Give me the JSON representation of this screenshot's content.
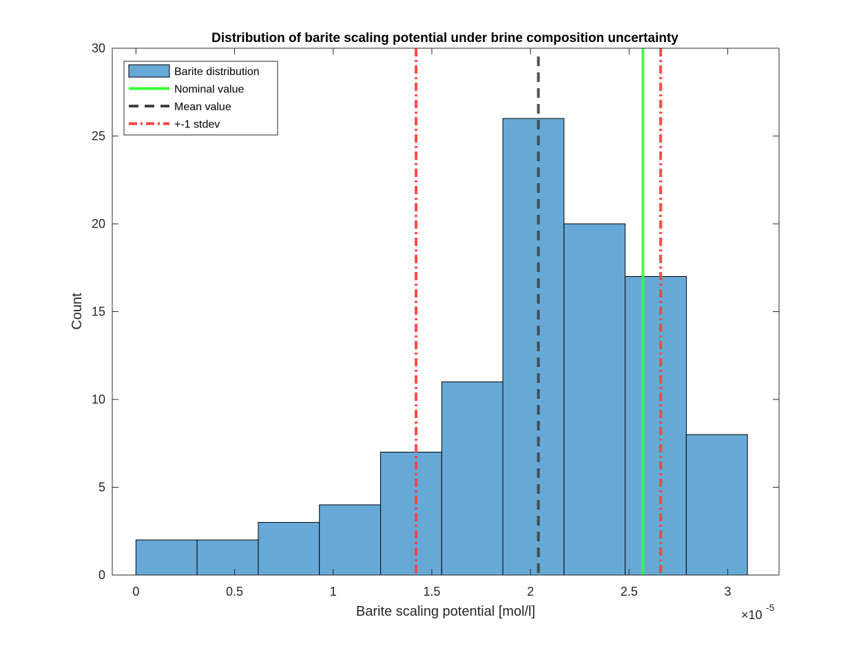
{
  "chart_data": {
    "type": "bar",
    "title": "Distribution of barite scaling potential under brine composition uncertainty",
    "xlabel": "Barite scaling potential [mol/l]",
    "ylabel": "Count",
    "x_exponent_label": "×10",
    "x_exponent_power": "-5",
    "xlim": [
      -0.12,
      3.26
    ],
    "ylim": [
      0,
      30
    ],
    "xticks": [
      0,
      0.5,
      1,
      1.5,
      2,
      2.5,
      3
    ],
    "xtick_labels": [
      "0",
      "0.5",
      "1",
      "1.5",
      "2",
      "2.5",
      "3"
    ],
    "yticks": [
      0,
      5,
      10,
      15,
      20,
      25,
      30
    ],
    "ytick_labels": [
      "0",
      "5",
      "10",
      "15",
      "20",
      "25",
      "30"
    ],
    "bin_edges": [
      0,
      0.31,
      0.62,
      0.93,
      1.24,
      1.55,
      1.86,
      2.17,
      2.48,
      2.79,
      3.1
    ],
    "counts": [
      2,
      2,
      3,
      4,
      7,
      11,
      26,
      20,
      17,
      8
    ],
    "vlines": [
      {
        "name": "Nominal value",
        "x": 2.57,
        "color": "#33ff33",
        "style": "solid"
      },
      {
        "name": "Mean value",
        "x": 2.04,
        "color": "#404040",
        "style": "dashed"
      },
      {
        "name": "+-1 stdev",
        "x": 1.42,
        "color": "#ff4040",
        "style": "dashdot"
      },
      {
        "name": "+-1 stdev",
        "x": 2.66,
        "color": "#ff4040",
        "style": "dashdot"
      }
    ],
    "legend": {
      "placement": "top-left",
      "entries": [
        {
          "label": "Barite distribution",
          "kind": "patch",
          "color": "#67a9d6"
        },
        {
          "label": "Nominal value",
          "kind": "solid",
          "color": "#33ff33"
        },
        {
          "label": "Mean value",
          "kind": "dashed",
          "color": "#404040"
        },
        {
          "label": "+-1 stdev",
          "kind": "dashdot",
          "color": "#ff4040"
        }
      ]
    },
    "bar_color": "#67a9d6",
    "bar_edge_color": "#000000",
    "grid": false
  }
}
